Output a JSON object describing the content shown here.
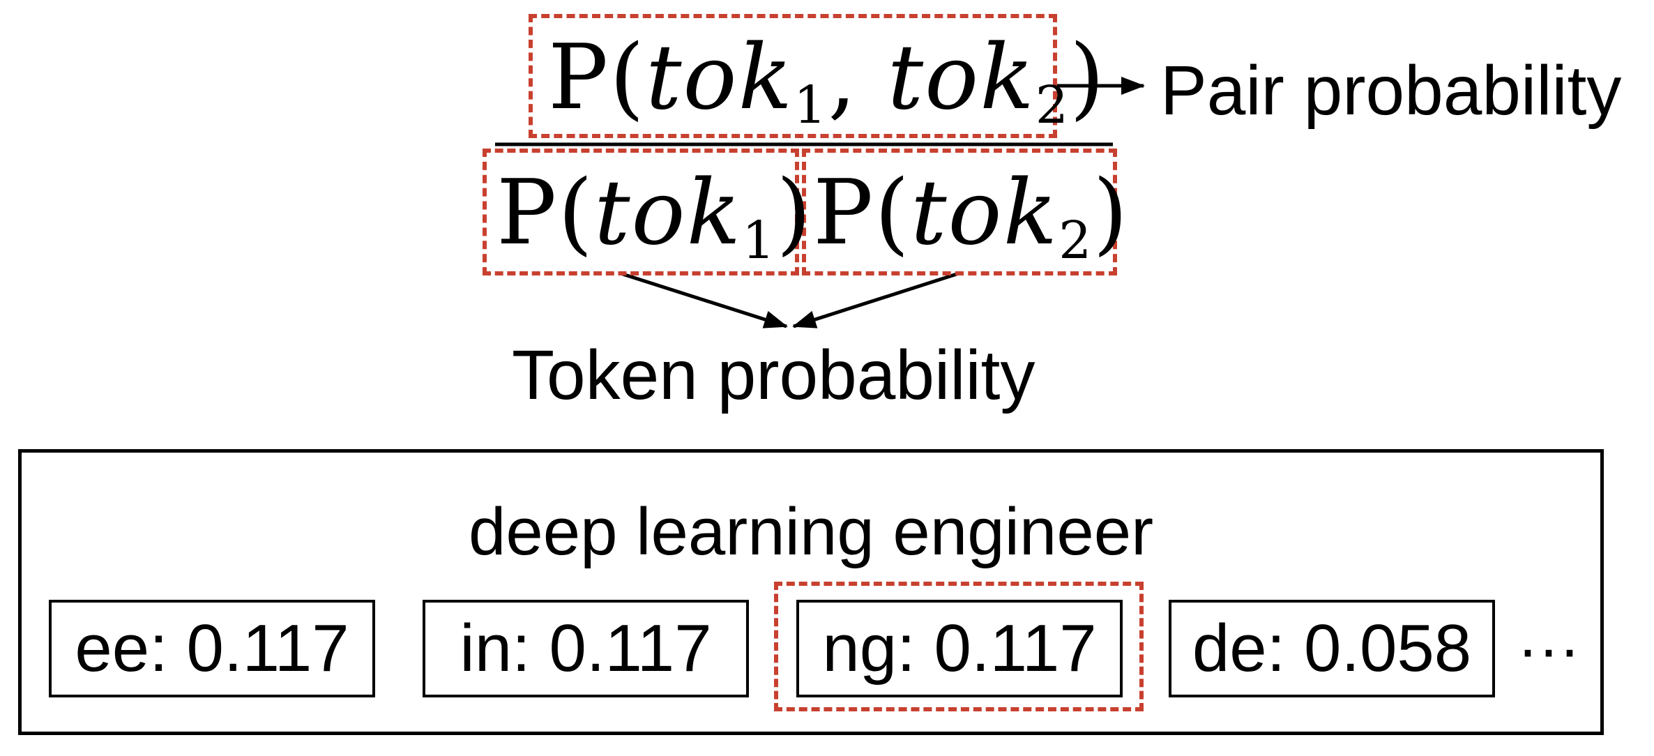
{
  "formula": {
    "numerator": {
      "func": "P",
      "var": "tok",
      "sub1": "1",
      "sep": ",",
      "sub2": "2"
    },
    "denominator_left": {
      "func": "P",
      "var": "tok",
      "sub": "1"
    },
    "denominator_right": {
      "func": "P",
      "var": "tok",
      "sub": "2"
    }
  },
  "labels": {
    "pair_probability": "Pair probability",
    "token_probability": "Token probability"
  },
  "example": {
    "word": "deep learning engineer",
    "tokens": [
      {
        "text": "ee: 0.117"
      },
      {
        "text": "in: 0.117"
      },
      {
        "text": "ng: 0.117",
        "highlighted": true
      },
      {
        "text": "de: 0.058"
      }
    ],
    "ellipsis": "···"
  },
  "colors": {
    "highlight": "#c8402f",
    "stroke": "#000000"
  }
}
